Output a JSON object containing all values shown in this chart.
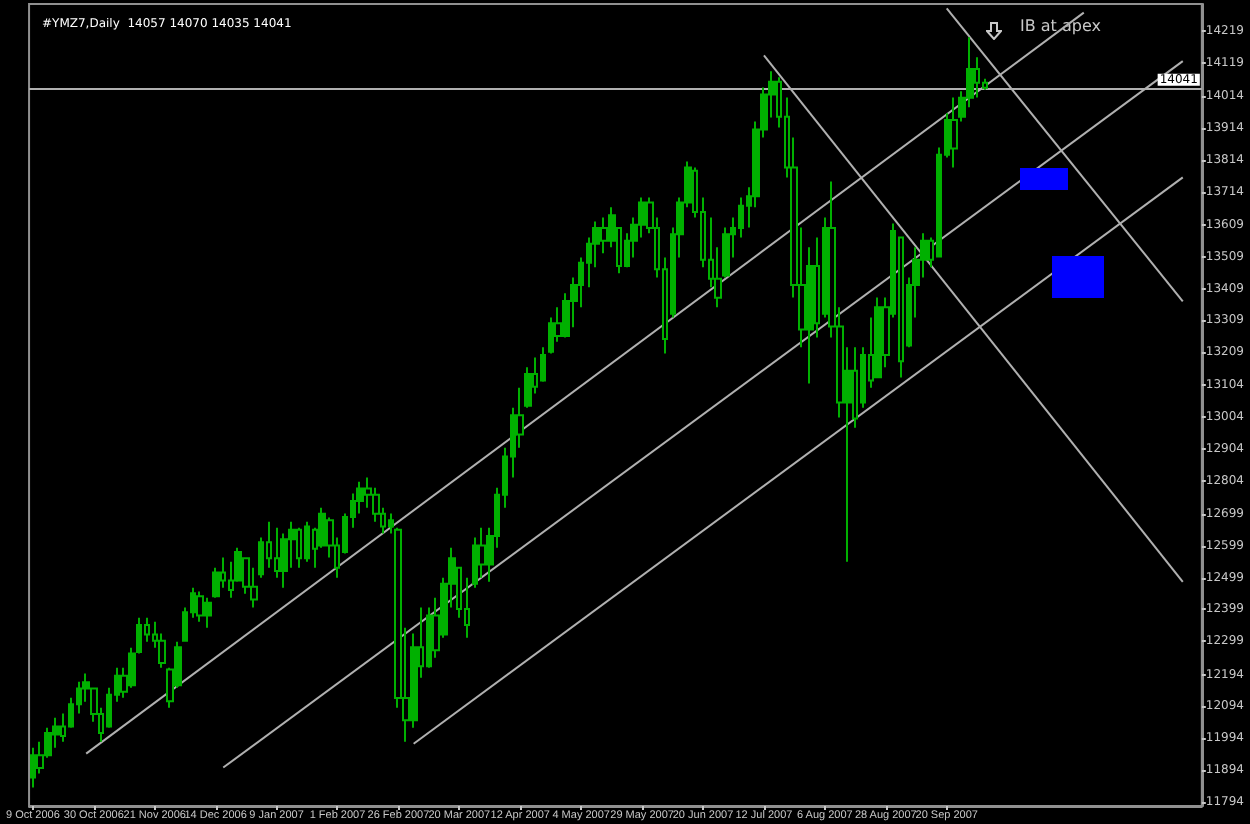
{
  "chart_data": {
    "type": "candlestick",
    "title": "#YMZ7,Daily  14057 14070 14035 14041",
    "color": "#00b000",
    "marker": "none",
    "grid": false,
    "annotations": [
      "IB at apex"
    ],
    "ref_lines": [
      {
        "axis": "y",
        "value": 14041,
        "label": "14041",
        "color": "#b0b0b0"
      }
    ],
    "ylim": [
      11780,
      14305
    ],
    "yticks": [
      11794,
      11894,
      11994,
      12094,
      12194,
      12299,
      12399,
      12499,
      12599,
      12699,
      12804,
      12904,
      13004,
      13104,
      13209,
      13309,
      13409,
      13509,
      13609,
      13714,
      13814,
      13914,
      14014,
      14119,
      14219
    ],
    "categories": [
      "9 Oct 2006",
      null,
      null,
      null,
      null,
      null,
      null,
      null,
      "30 Oct 2006",
      null,
      null,
      null,
      null,
      null,
      null,
      null,
      "21 Nov 2006",
      null,
      null,
      null,
      null,
      null,
      null,
      null,
      "14 Dec 2006",
      null,
      null,
      null,
      null,
      null,
      null,
      null,
      "9 Jan 2007",
      null,
      null,
      null,
      null,
      null,
      null,
      null,
      "1 Feb 2007",
      null,
      null,
      null,
      null,
      null,
      null,
      null,
      "26 Feb 2007",
      null,
      null,
      null,
      null,
      null,
      null,
      null,
      "20 Mar 2007",
      null,
      null,
      null,
      null,
      null,
      null,
      null,
      "12 Apr 2007",
      null,
      null,
      null,
      null,
      null,
      null,
      null,
      "4 May 2007",
      null,
      null,
      null,
      null,
      null,
      null,
      null,
      "29 May 2007",
      null,
      null,
      null,
      null,
      null,
      null,
      null,
      "20 Jun 2007",
      null,
      null,
      null,
      null,
      null,
      null,
      null,
      "12 Jul 2007",
      null,
      null,
      null,
      null,
      null,
      null,
      null,
      "6 Aug 2007",
      null,
      null,
      null,
      null,
      null,
      null,
      null,
      "28 Aug 2007",
      null,
      null,
      null,
      null,
      null,
      null,
      null,
      "20 Sep 2007",
      null,
      null,
      null,
      null,
      null,
      null,
      null,
      null,
      null,
      null,
      null,
      null,
      null,
      null,
      null,
      null,
      null,
      null,
      null,
      null,
      null,
      null,
      null,
      null,
      null,
      null,
      null,
      null,
      null,
      null,
      null,
      null,
      null
    ],
    "ohlc": [
      [
        11870,
        11963,
        11838,
        11940
      ],
      [
        11940,
        11982,
        11882,
        11900
      ],
      [
        11940,
        12026,
        11932,
        12010
      ],
      [
        12005,
        12058,
        11963,
        12030
      ],
      [
        12030,
        12071,
        11982,
        12000
      ],
      [
        12030,
        12121,
        12026,
        12100
      ],
      [
        12100,
        12171,
        12071,
        12150
      ],
      [
        12150,
        12197,
        12108,
        12170
      ],
      [
        12150,
        12152,
        12045,
        12070
      ],
      [
        12070,
        12089,
        11982,
        12010
      ],
      [
        12030,
        12152,
        12026,
        12130
      ],
      [
        12130,
        12215,
        12108,
        12190
      ],
      [
        12190,
        12215,
        12121,
        12140
      ],
      [
        12160,
        12278,
        12152,
        12260
      ],
      [
        12265,
        12373,
        12260,
        12350
      ],
      [
        12350,
        12373,
        12297,
        12320
      ],
      [
        12320,
        12360,
        12278,
        12300
      ],
      [
        12300,
        12323,
        12215,
        12230
      ],
      [
        12210,
        12215,
        12089,
        12110
      ],
      [
        12160,
        12297,
        12152,
        12280
      ],
      [
        12300,
        12405,
        12297,
        12390
      ],
      [
        12390,
        12467,
        12373,
        12450
      ],
      [
        12440,
        12455,
        12360,
        12380
      ],
      [
        12380,
        12436,
        12341,
        12420
      ],
      [
        12440,
        12530,
        12436,
        12515
      ],
      [
        12515,
        12562,
        12467,
        12490
      ],
      [
        12490,
        12549,
        12436,
        12460
      ],
      [
        12490,
        12593,
        12486,
        12580
      ],
      [
        12560,
        12562,
        12448,
        12470
      ],
      [
        12470,
        12530,
        12405,
        12430
      ],
      [
        12510,
        12625,
        12499,
        12610
      ],
      [
        12610,
        12675,
        12530,
        12560
      ],
      [
        12560,
        12656,
        12499,
        12520
      ],
      [
        12520,
        12638,
        12467,
        12620
      ],
      [
        12620,
        12675,
        12530,
        12650
      ],
      [
        12650,
        12656,
        12530,
        12560
      ],
      [
        12560,
        12675,
        12549,
        12660
      ],
      [
        12650,
        12656,
        12530,
        12590
      ],
      [
        12600,
        12719,
        12593,
        12700
      ],
      [
        12680,
        12688,
        12562,
        12600
      ],
      [
        12600,
        12625,
        12499,
        12530
      ],
      [
        12580,
        12701,
        12575,
        12690
      ],
      [
        12690,
        12764,
        12656,
        12740
      ],
      [
        12740,
        12801,
        12701,
        12780
      ],
      [
        12780,
        12814,
        12719,
        12760
      ],
      [
        12760,
        12782,
        12675,
        12700
      ],
      [
        12700,
        12719,
        12638,
        12660
      ],
      [
        12660,
        12701,
        12638,
        12680
      ],
      [
        12650,
        12656,
        12089,
        12120
      ],
      [
        12120,
        12341,
        11982,
        12050
      ],
      [
        12050,
        12323,
        12026,
        12280
      ],
      [
        12280,
        12405,
        12184,
        12220
      ],
      [
        12220,
        12405,
        12215,
        12380
      ],
      [
        12380,
        12436,
        12247,
        12270
      ],
      [
        12320,
        12499,
        12310,
        12480
      ],
      [
        12480,
        12593,
        12405,
        12560
      ],
      [
        12530,
        12530,
        12373,
        12400
      ],
      [
        12400,
        12499,
        12310,
        12350
      ],
      [
        12480,
        12625,
        12467,
        12600
      ],
      [
        12600,
        12656,
        12499,
        12540
      ],
      [
        12540,
        12656,
        12486,
        12630
      ],
      [
        12630,
        12782,
        12593,
        12760
      ],
      [
        12760,
        12908,
        12719,
        12880
      ],
      [
        12880,
        13034,
        12814,
        13010
      ],
      [
        13010,
        13097,
        12908,
        12950
      ],
      [
        13040,
        13161,
        13034,
        13140
      ],
      [
        13140,
        13192,
        13079,
        13100
      ],
      [
        13120,
        13224,
        13116,
        13200
      ],
      [
        13210,
        13318,
        13205,
        13300
      ],
      [
        13300,
        13350,
        13242,
        13260
      ],
      [
        13260,
        13394,
        13255,
        13370
      ],
      [
        13370,
        13444,
        13287,
        13420
      ],
      [
        13420,
        13507,
        13350,
        13490
      ],
      [
        13490,
        13570,
        13413,
        13550
      ],
      [
        13550,
        13620,
        13476,
        13600
      ],
      [
        13600,
        13633,
        13520,
        13560
      ],
      [
        13560,
        13665,
        13539,
        13640
      ],
      [
        13600,
        13601,
        13457,
        13480
      ],
      [
        13480,
        13583,
        13476,
        13560
      ],
      [
        13560,
        13633,
        13507,
        13610
      ],
      [
        13610,
        13696,
        13570,
        13680
      ],
      [
        13680,
        13696,
        13583,
        13600
      ],
      [
        13600,
        13633,
        13444,
        13470
      ],
      [
        13470,
        13507,
        13205,
        13250
      ],
      [
        13330,
        13601,
        13318,
        13580
      ],
      [
        13580,
        13696,
        13507,
        13680
      ],
      [
        13680,
        13809,
        13665,
        13790
      ],
      [
        13780,
        13790,
        13633,
        13650
      ],
      [
        13650,
        13696,
        13476,
        13500
      ],
      [
        13500,
        13633,
        13413,
        13440
      ],
      [
        13440,
        13539,
        13350,
        13380
      ],
      [
        13450,
        13601,
        13444,
        13580
      ],
      [
        13580,
        13633,
        13507,
        13600
      ],
      [
        13600,
        13696,
        13570,
        13670
      ],
      [
        13670,
        13728,
        13601,
        13700
      ],
      [
        13700,
        13935,
        13665,
        13910
      ],
      [
        13910,
        14042,
        13885,
        14020
      ],
      [
        14020,
        14093,
        13948,
        14060
      ],
      [
        14060,
        14074,
        13916,
        13950
      ],
      [
        13950,
        14011,
        13759,
        13790
      ],
      [
        13790,
        13885,
        13381,
        13420
      ],
      [
        13420,
        13601,
        13224,
        13280
      ],
      [
        13280,
        13539,
        13110,
        13480
      ],
      [
        13480,
        13570,
        13255,
        13300
      ],
      [
        13330,
        13633,
        13318,
        13600
      ],
      [
        13600,
        13746,
        13255,
        13290
      ],
      [
        13290,
        13350,
        13003,
        13050
      ],
      [
        13050,
        13224,
        12549,
        13150
      ],
      [
        13150,
        13224,
        12971,
        13000
      ],
      [
        13050,
        13224,
        13034,
        13200
      ],
      [
        13200,
        13318,
        13097,
        13120
      ],
      [
        13130,
        13381,
        13129,
        13350
      ],
      [
        13350,
        13381,
        13161,
        13200
      ],
      [
        13330,
        13614,
        13318,
        13590
      ],
      [
        13570,
        13570,
        13129,
        13180
      ],
      [
        13230,
        13444,
        13224,
        13420
      ],
      [
        13420,
        13539,
        13318,
        13500
      ],
      [
        13500,
        13583,
        13444,
        13560
      ],
      [
        13560,
        13570,
        13476,
        13500
      ],
      [
        13510,
        13853,
        13507,
        13830
      ],
      [
        13830,
        13961,
        13822,
        13940
      ],
      [
        13940,
        14011,
        13790,
        13850
      ],
      [
        13950,
        14030,
        13935,
        14010
      ],
      [
        14010,
        14200,
        13980,
        14100
      ],
      [
        14100,
        14137,
        14011,
        14057
      ],
      [
        14057,
        14070,
        14035,
        14041
      ],
      null,
      null,
      null,
      null,
      null,
      null,
      null,
      null,
      null,
      null,
      null,
      null,
      null,
      null,
      null,
      null,
      null,
      null,
      null,
      null,
      null,
      null,
      null,
      null,
      null,
      null,
      null,
      null
    ],
    "series": [
      {
        "type": "line",
        "color": "#b0b0b0",
        "values": [
          null,
          null,
          null,
          null,
          null,
          null,
          null,
          11945,
          null,
          null,
          null,
          null,
          null,
          null,
          null,
          null,
          null,
          null,
          null,
          null,
          null,
          null,
          null,
          null,
          null,
          null,
          null,
          null,
          null,
          null,
          null,
          null,
          null,
          null,
          null,
          null,
          null,
          null,
          null,
          null,
          null,
          null,
          null,
          null,
          null,
          null,
          null,
          null,
          null,
          null,
          null,
          null,
          null,
          null,
          null,
          null,
          null,
          null,
          null,
          null,
          null,
          null,
          null,
          null,
          null,
          null,
          null,
          null,
          null,
          null,
          null,
          null,
          null,
          null,
          null,
          null,
          null,
          null,
          null,
          null,
          null,
          null,
          null,
          null,
          null,
          null,
          null,
          null,
          null,
          null,
          null,
          null,
          null,
          null,
          null,
          null,
          null,
          null,
          null,
          null,
          null,
          null,
          null,
          null,
          null,
          null,
          null,
          null,
          null,
          null,
          null,
          null,
          null,
          null,
          null,
          null,
          null,
          null,
          null,
          null,
          null,
          null,
          null,
          null,
          null,
          null,
          null,
          null,
          null,
          null,
          null,
          null,
          null,
          null,
          null,
          null,
          null,
          null,
          14278,
          null,
          null,
          null,
          null,
          null,
          null,
          null,
          null,
          null,
          null,
          null,
          null,
          null,
          null,
          null
        ]
      },
      {
        "type": "line",
        "color": "#b0b0b0",
        "values": [
          null,
          null,
          null,
          null,
          null,
          null,
          null,
          null,
          null,
          null,
          null,
          null,
          null,
          null,
          null,
          null,
          null,
          null,
          null,
          null,
          null,
          null,
          null,
          null,
          null,
          11901,
          null,
          null,
          null,
          null,
          null,
          null,
          null,
          null,
          null,
          null,
          null,
          null,
          null,
          null,
          null,
          null,
          null,
          null,
          null,
          null,
          null,
          null,
          null,
          null,
          null,
          null,
          null,
          null,
          null,
          null,
          null,
          null,
          null,
          null,
          null,
          null,
          null,
          null,
          null,
          null,
          null,
          null,
          null,
          null,
          null,
          null,
          null,
          null,
          null,
          null,
          null,
          null,
          null,
          null,
          null,
          null,
          null,
          null,
          null,
          null,
          null,
          null,
          null,
          null,
          null,
          null,
          null,
          null,
          null,
          null,
          null,
          null,
          null,
          null,
          null,
          null,
          null,
          null,
          null,
          null,
          null,
          null,
          null,
          null,
          null,
          null,
          null,
          null,
          null,
          null,
          null,
          null,
          null,
          null,
          null,
          null,
          null,
          null,
          null,
          null,
          null,
          null,
          null,
          null,
          null,
          null,
          null,
          null,
          null,
          null,
          null,
          null,
          null,
          null,
          null,
          null,
          null,
          null,
          null,
          null,
          null,
          null,
          null,
          null,
          null,
          14125,
          null,
          null
        ]
      },
      {
        "type": "line",
        "color": "#b0b0b0",
        "values": [
          null,
          null,
          null,
          null,
          null,
          null,
          null,
          null,
          null,
          null,
          null,
          null,
          null,
          null,
          null,
          null,
          null,
          null,
          null,
          null,
          null,
          null,
          null,
          null,
          null,
          null,
          null,
          null,
          null,
          null,
          null,
          null,
          null,
          null,
          null,
          null,
          null,
          null,
          null,
          null,
          null,
          null,
          null,
          null,
          null,
          null,
          null,
          null,
          null,
          null,
          11976,
          null,
          null,
          null,
          null,
          null,
          null,
          null,
          null,
          null,
          null,
          null,
          null,
          null,
          null,
          null,
          null,
          null,
          null,
          null,
          null,
          null,
          null,
          null,
          null,
          null,
          null,
          null,
          null,
          null,
          null,
          null,
          null,
          null,
          null,
          null,
          null,
          null,
          null,
          null,
          null,
          null,
          null,
          null,
          null,
          null,
          null,
          null,
          null,
          null,
          null,
          null,
          null,
          null,
          null,
          null,
          null,
          null,
          null,
          null,
          null,
          null,
          null,
          null,
          null,
          null,
          null,
          null,
          null,
          null,
          null,
          null,
          null,
          null,
          null,
          null,
          null,
          null,
          null,
          null,
          null,
          null,
          null,
          null,
          null,
          null,
          null,
          null,
          null,
          null,
          null,
          null,
          null,
          null,
          null,
          null,
          null,
          null,
          null,
          null,
          null,
          13759,
          null,
          null
        ]
      },
      {
        "type": "line",
        "color": "#b0b0b0",
        "values": [
          null,
          null,
          null,
          null,
          null,
          null,
          null,
          null,
          null,
          null,
          null,
          null,
          null,
          null,
          null,
          null,
          null,
          null,
          null,
          null,
          null,
          null,
          null,
          null,
          null,
          null,
          null,
          null,
          null,
          null,
          null,
          null,
          null,
          null,
          null,
          null,
          null,
          null,
          null,
          null,
          null,
          null,
          null,
          null,
          null,
          null,
          null,
          null,
          null,
          null,
          null,
          null,
          null,
          null,
          null,
          null,
          null,
          null,
          null,
          null,
          null,
          null,
          null,
          null,
          null,
          null,
          null,
          null,
          null,
          null,
          null,
          null,
          null,
          null,
          null,
          null,
          null,
          null,
          null,
          null,
          null,
          null,
          null,
          null,
          null,
          null,
          null,
          null,
          null,
          null,
          null,
          null,
          null,
          null,
          null,
          null,
          null,
          null,
          null,
          null,
          null,
          null,
          null,
          null,
          null,
          null,
          null,
          null,
          null,
          null,
          null,
          null,
          null,
          null,
          null,
          null,
          null,
          null,
          null,
          null,
          14291,
          null,
          null,
          null,
          null,
          null,
          null,
          null,
          null,
          null,
          null,
          null,
          null,
          null,
          null,
          null,
          null,
          null,
          null,
          null,
          null,
          null,
          null,
          null,
          null,
          null,
          null,
          null,
          null,
          null,
          null,
          13369,
          null,
          null
        ]
      },
      {
        "type": "line",
        "color": "#b0b0b0",
        "values": [
          null,
          null,
          null,
          null,
          null,
          null,
          null,
          null,
          null,
          null,
          null,
          null,
          null,
          null,
          null,
          null,
          null,
          null,
          null,
          null,
          null,
          null,
          null,
          null,
          null,
          null,
          null,
          null,
          null,
          null,
          null,
          null,
          null,
          null,
          null,
          null,
          null,
          null,
          null,
          null,
          null,
          null,
          null,
          null,
          null,
          null,
          null,
          null,
          null,
          null,
          null,
          null,
          null,
          null,
          null,
          null,
          null,
          null,
          null,
          null,
          null,
          null,
          null,
          null,
          null,
          null,
          null,
          null,
          null,
          null,
          null,
          null,
          null,
          null,
          null,
          null,
          null,
          null,
          null,
          null,
          null,
          null,
          null,
          null,
          null,
          null,
          null,
          null,
          null,
          null,
          null,
          null,
          null,
          null,
          null,
          null,
          14143,
          null,
          null,
          null,
          null,
          null,
          null,
          null,
          null,
          null,
          null,
          null,
          null,
          null,
          null,
          null,
          null,
          null,
          null,
          null,
          null,
          null,
          null,
          null,
          null,
          null,
          null,
          null,
          null,
          null,
          null,
          null,
          null,
          null,
          null,
          null,
          null,
          null,
          null,
          null,
          null,
          null,
          null,
          null,
          null,
          null,
          null,
          null,
          null,
          null,
          null,
          null,
          null,
          null,
          null,
          12486,
          null,
          null
        ]
      }
    ]
  }
}
